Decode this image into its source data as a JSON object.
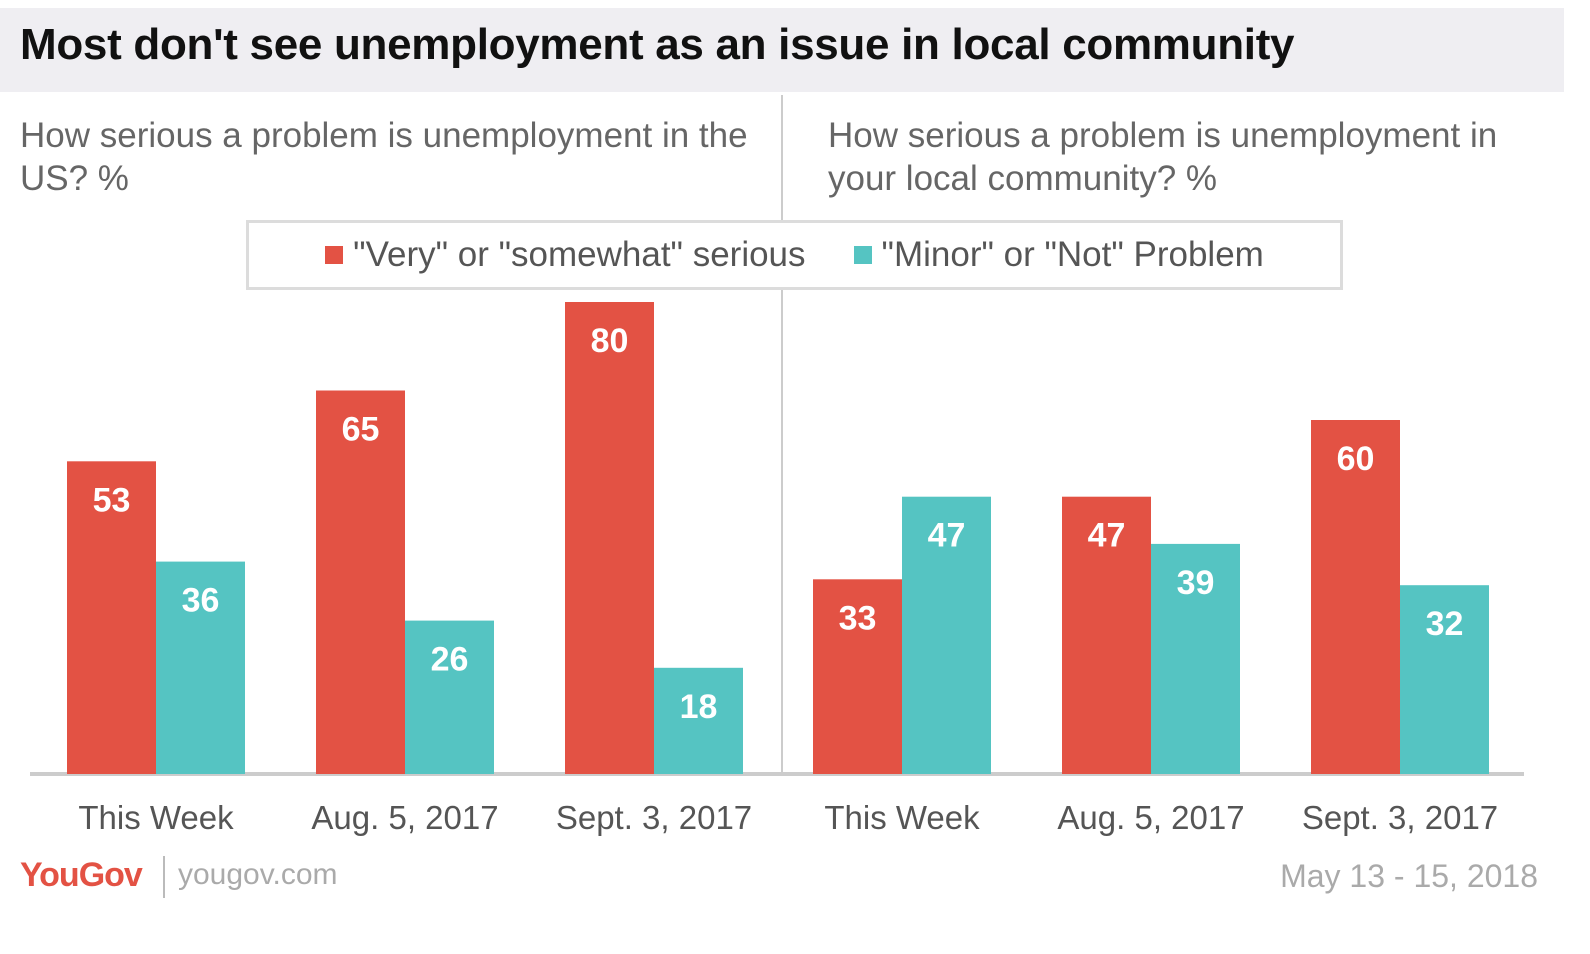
{
  "title": "Most don't see unemployment as an issue in local community",
  "colors": {
    "red": "#e35244",
    "teal": "#55c4c2",
    "divider": "#cccccc",
    "baseline": "#cccccc"
  },
  "legend": [
    {
      "label": "\"Very\" or \"somewhat\" serious",
      "color": "#e35244"
    },
    {
      "label": "\"Minor\" or \"Not\" Problem",
      "color": "#55c4c2"
    }
  ],
  "chart_data": [
    {
      "type": "bar",
      "title": "How serious a problem is unemployment in the US? %",
      "categories": [
        "This Week",
        "Aug. 5, 2017",
        "Sept. 3, 2017"
      ],
      "series": [
        {
          "name": "\"Very\" or \"somewhat\" serious",
          "values": [
            53,
            65,
            80
          ]
        },
        {
          "name": "\"Minor\" or \"Not\" Problem",
          "values": [
            36,
            26,
            18
          ]
        }
      ],
      "ylim": [
        0,
        80
      ],
      "legend": "top"
    },
    {
      "type": "bar",
      "title": "How serious a problem is unemployment in your local community? %",
      "categories": [
        "This Week",
        "Aug. 5, 2017",
        "Sept. 3, 2017"
      ],
      "series": [
        {
          "name": "\"Very\" or \"somewhat\" serious",
          "values": [
            33,
            47,
            60
          ]
        },
        {
          "name": "\"Minor\" or \"Not\" Problem",
          "values": [
            47,
            39,
            32
          ]
        }
      ],
      "ylim": [
        0,
        80
      ],
      "legend": "top"
    }
  ],
  "footer": {
    "brand": "YouGov",
    "site": "yougov.com",
    "date": "May 13 - 15, 2018"
  }
}
